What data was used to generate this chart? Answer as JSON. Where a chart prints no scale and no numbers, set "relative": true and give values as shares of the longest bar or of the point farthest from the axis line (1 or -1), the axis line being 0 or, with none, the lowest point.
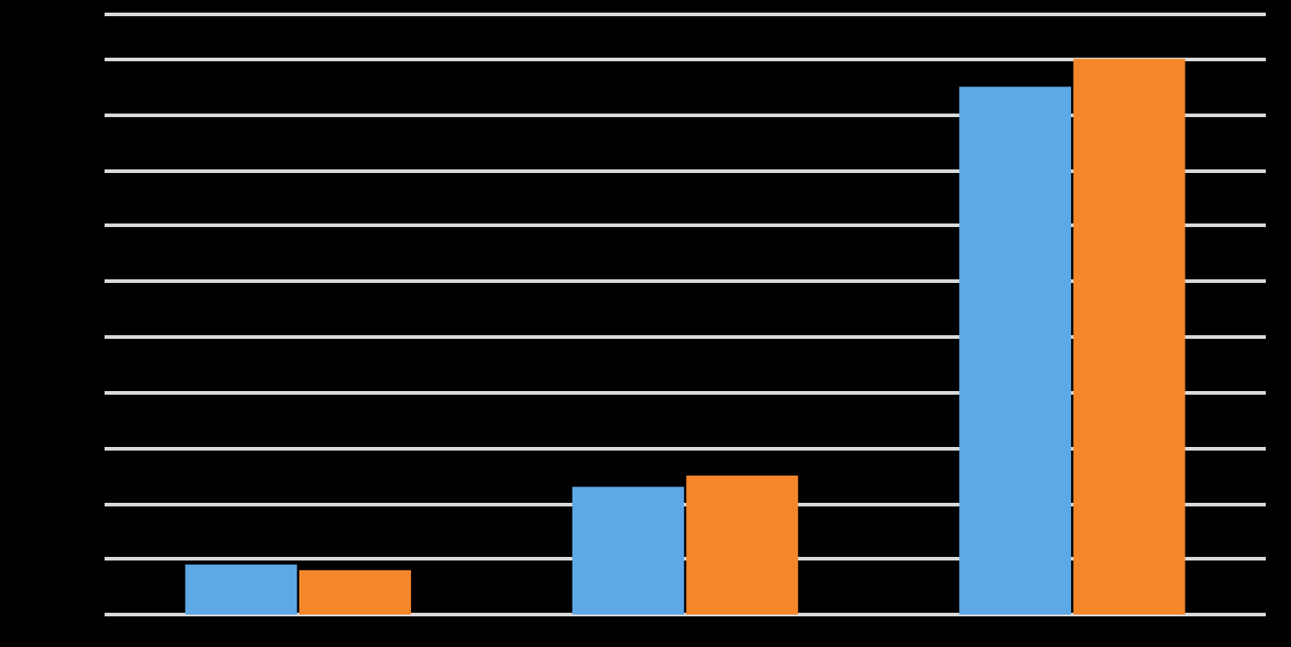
{
  "chart_data": {
    "type": "bar",
    "relative": true,
    "grid": true,
    "categories": [
      null,
      null,
      null
    ],
    "series": [
      {
        "color": "#5fa8e6",
        "values": [
          0.09,
          0.23,
          0.95
        ]
      },
      {
        "color": "#f5862a",
        "values": [
          0.08,
          0.25,
          1
        ]
      }
    ]
  }
}
